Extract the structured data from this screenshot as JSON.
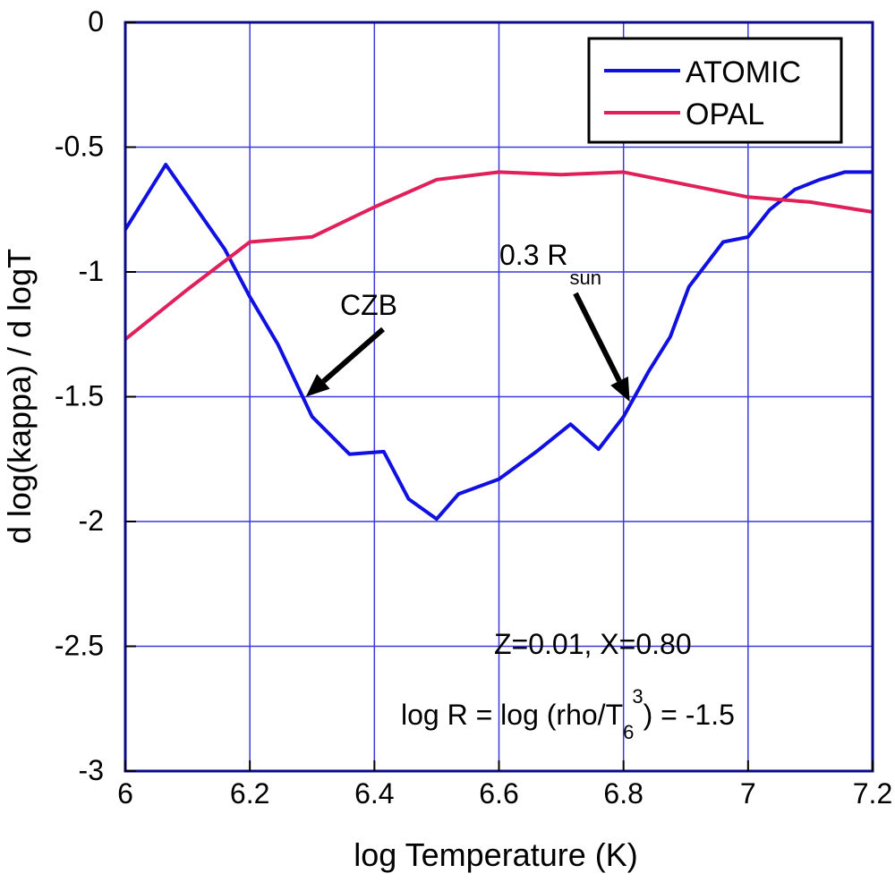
{
  "chart_data": {
    "type": "line",
    "xlabel": "log Temperature (K)",
    "ylabel": "d log(kappa) / d logT",
    "xlim": [
      6,
      7.2
    ],
    "ylim": [
      -3,
      0
    ],
    "xticks": [
      "6",
      "6.2",
      "6.4",
      "6.6",
      "6.8",
      "7",
      "7.2"
    ],
    "yticks": [
      "0",
      "-0.5",
      "-1",
      "-1.5",
      "-2",
      "-2.5",
      "-3"
    ],
    "grid": true,
    "legend_position": "top-right",
    "series": [
      {
        "name": "ATOMIC",
        "color": "#1010e0",
        "x": [
          6.0,
          6.065,
          6.16,
          6.2,
          6.245,
          6.3,
          6.36,
          6.415,
          6.455,
          6.5,
          6.535,
          6.6,
          6.66,
          6.715,
          6.76,
          6.8,
          6.84,
          6.875,
          6.905,
          6.96,
          7.0,
          7.035,
          7.075,
          7.115,
          7.155,
          7.2
        ],
        "y": [
          -0.83,
          -0.57,
          -0.91,
          -1.1,
          -1.29,
          -1.58,
          -1.73,
          -1.72,
          -1.91,
          -1.99,
          -1.89,
          -1.83,
          -1.72,
          -1.61,
          -1.71,
          -1.58,
          -1.4,
          -1.26,
          -1.06,
          -0.88,
          -0.86,
          -0.75,
          -0.67,
          -0.63,
          -0.6,
          -0.6
        ]
      },
      {
        "name": "OPAL",
        "color": "#e0205a",
        "x": [
          6.0,
          6.1,
          6.2,
          6.3,
          6.4,
          6.5,
          6.6,
          6.7,
          6.8,
          6.9,
          7.0,
          7.1,
          7.2
        ],
        "y": [
          -1.27,
          -1.07,
          -0.88,
          -0.86,
          -0.74,
          -0.63,
          -0.6,
          -0.61,
          -0.6,
          -0.65,
          -0.7,
          -0.72,
          -0.76
        ]
      }
    ],
    "annotations": {
      "czb": {
        "text": "CZB",
        "target_x": 6.29,
        "target_y": -1.5
      },
      "rsun": {
        "text": "0.3 R",
        "sub": "sun",
        "target_x": 6.81,
        "target_y": -1.52
      }
    },
    "parameters": {
      "line1": "Z=0.01, X=0.80",
      "line2_pre": "log R = log (rho/T",
      "line2_sub": "6",
      "line2_sup": "3",
      "line2_post": ") = -1.5"
    }
  }
}
